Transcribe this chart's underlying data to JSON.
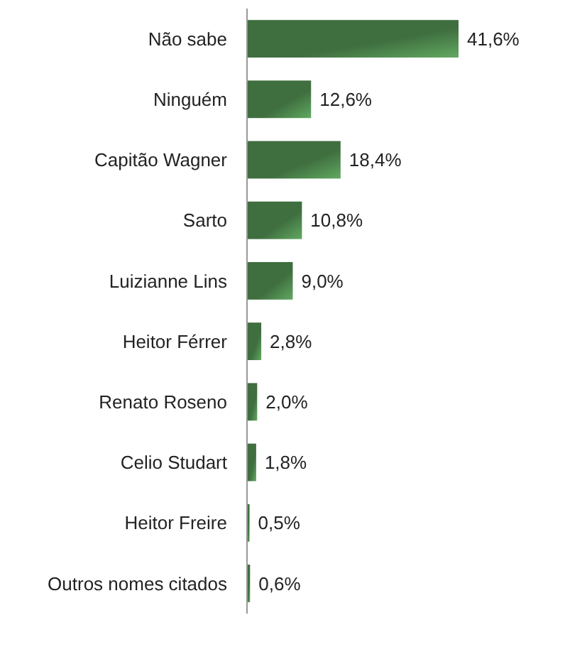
{
  "chart_data": {
    "type": "bar",
    "orientation": "horizontal",
    "categories": [
      "Não sabe",
      "Ninguém",
      "Capitão Wagner",
      "Sarto",
      "Luizianne Lins",
      "Heitor Férrer",
      "Renato Roseno",
      "Celio Studart",
      "Heitor Freire",
      "Outros nomes citados"
    ],
    "values": [
      41.6,
      12.6,
      18.4,
      10.8,
      9.0,
      2.8,
      2.0,
      1.8,
      0.5,
      0.6
    ],
    "value_labels": [
      "41,6%",
      "12,6%",
      "18,4%",
      "10,8%",
      "9,0%",
      "2,8%",
      "2,0%",
      "1,8%",
      "0,5%",
      "0,6%"
    ],
    "color": "#3f6e3f"
  }
}
